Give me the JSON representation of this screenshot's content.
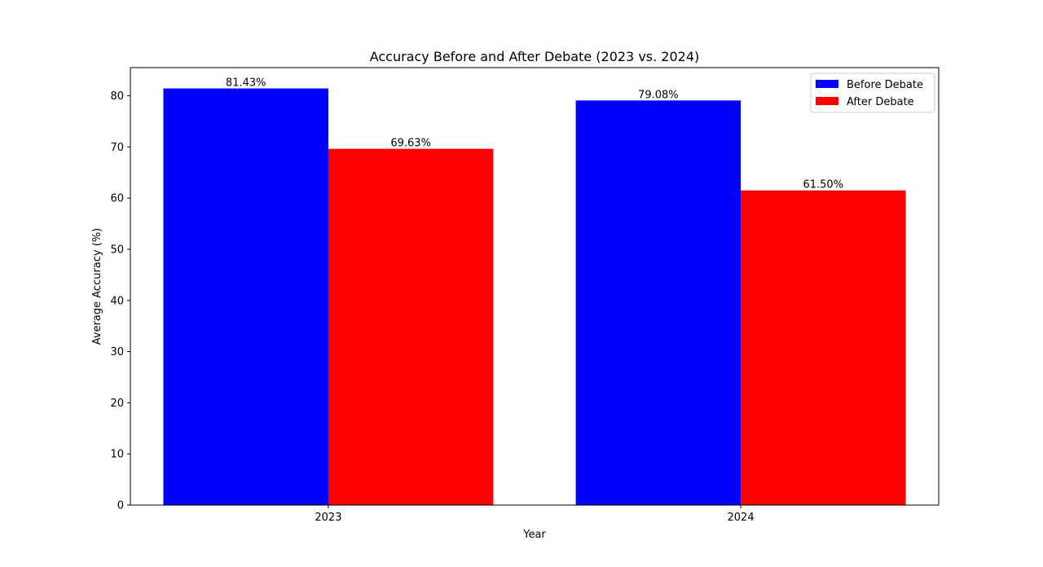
{
  "chart_data": {
    "type": "bar",
    "title": "Accuracy Before and After Debate (2023 vs. 2024)",
    "xlabel": "Year",
    "ylabel": "Average Accuracy (%)",
    "categories": [
      "2023",
      "2024"
    ],
    "ylim": [
      0,
      85.5
    ],
    "yticks": [
      0,
      10,
      20,
      30,
      40,
      50,
      60,
      70,
      80
    ],
    "grid": false,
    "legend_position": "top-right",
    "series": [
      {
        "name": "Before Debate",
        "color": "#0000ff",
        "values": [
          81.43,
          79.08
        ],
        "labels": [
          "81.43%",
          "79.08%"
        ]
      },
      {
        "name": "After Debate",
        "color": "#ff0000",
        "values": [
          69.63,
          61.5
        ],
        "labels": [
          "69.63%",
          "61.50%"
        ]
      }
    ]
  }
}
